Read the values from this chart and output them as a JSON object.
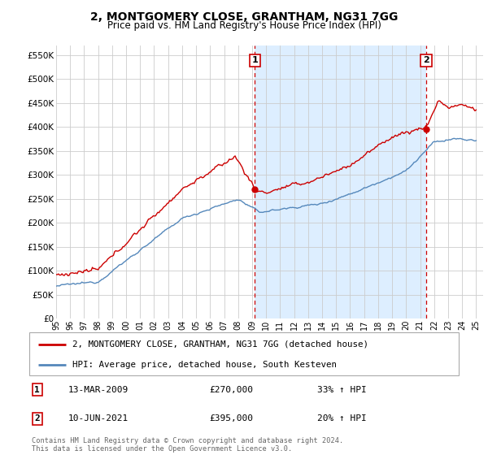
{
  "title": "2, MONTGOMERY CLOSE, GRANTHAM, NG31 7GG",
  "subtitle": "Price paid vs. HM Land Registry's House Price Index (HPI)",
  "legend_line1": "2, MONTGOMERY CLOSE, GRANTHAM, NG31 7GG (detached house)",
  "legend_line2": "HPI: Average price, detached house, South Kesteven",
  "transaction1_label": "1",
  "transaction1_date": "13-MAR-2009",
  "transaction1_price": "£270,000",
  "transaction1_hpi": "33% ↑ HPI",
  "transaction2_label": "2",
  "transaction2_date": "10-JUN-2021",
  "transaction2_price": "£395,000",
  "transaction2_hpi": "20% ↑ HPI",
  "footnote": "Contains HM Land Registry data © Crown copyright and database right 2024.\nThis data is licensed under the Open Government Licence v3.0.",
  "red_color": "#cc0000",
  "blue_color": "#5588bb",
  "shade_color": "#ddeeff",
  "background_color": "#ffffff",
  "grid_color": "#cccccc",
  "ylim_min": 0,
  "ylim_max": 570000,
  "yticks": [
    0,
    50000,
    100000,
    150000,
    200000,
    250000,
    300000,
    350000,
    400000,
    450000,
    500000,
    550000
  ],
  "transaction1_x": 2009.2,
  "transaction1_y": 270000,
  "transaction2_x": 2021.44,
  "transaction2_y": 395000,
  "xlim_min": 1995,
  "xlim_max": 2025.5
}
